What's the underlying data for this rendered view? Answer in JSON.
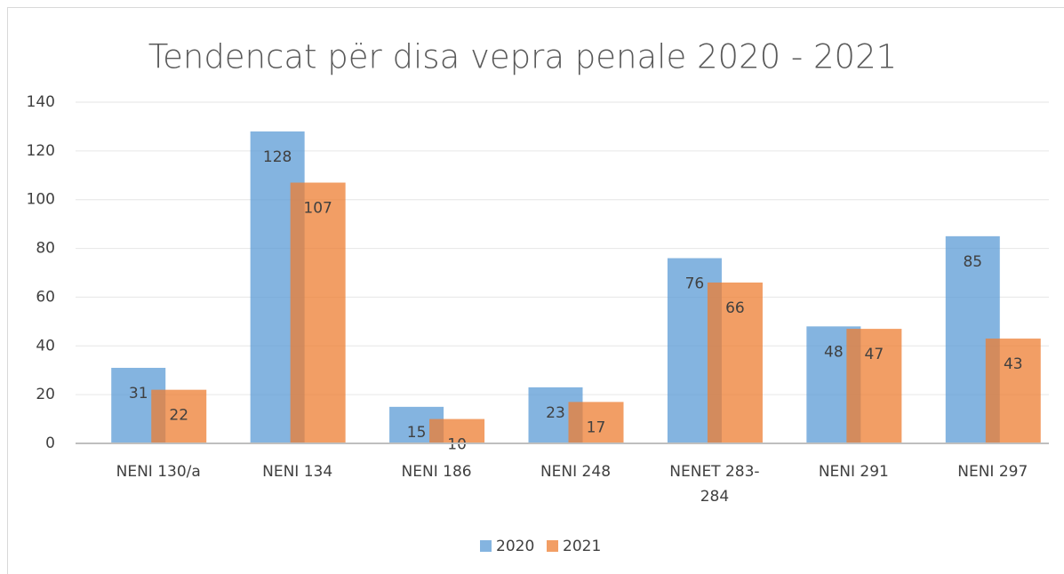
{
  "chart_data": {
    "type": "bar",
    "title": "Tendencat për disa vepra penale 2020 - 2021",
    "categories": [
      "NENI 130/a",
      "NENI 134",
      "NENI 186",
      "NENI 248",
      "NENET 283-284",
      "NENI 291",
      "NENI 297"
    ],
    "series": [
      {
        "name": "2020",
        "color": "#5b9bd5",
        "values": [
          31,
          128,
          15,
          23,
          76,
          48,
          85
        ]
      },
      {
        "name": "2021",
        "color": "#ed7d31",
        "values": [
          22,
          107,
          10,
          17,
          66,
          47,
          43
        ]
      }
    ],
    "ylim": [
      0,
      140
    ],
    "yticks": [
      0,
      20,
      40,
      60,
      80,
      100,
      120,
      140
    ],
    "grid": true,
    "legend": "bottom"
  }
}
